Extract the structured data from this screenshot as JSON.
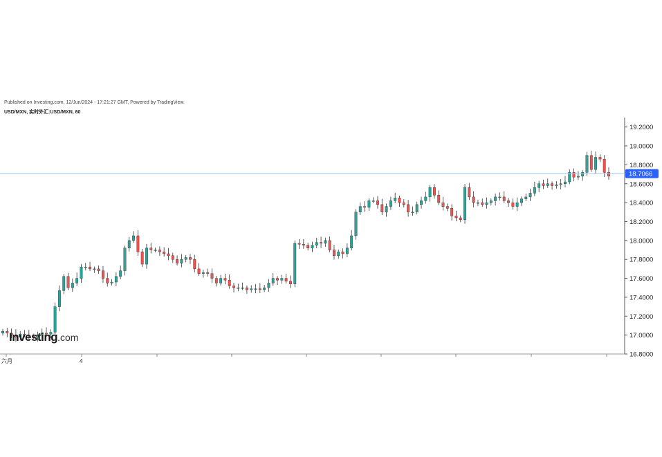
{
  "header": {
    "published": "Published on Investing.com, 12/Jun/2024 - 17:21:27 GMT, Powered by TradingView.",
    "symbol": "USD/MXN, 实时外汇:USD/MXN, 60"
  },
  "logo": {
    "brand": "Investing",
    "suffix": ".com"
  },
  "colors": {
    "up": "#26a69a",
    "down": "#ef5350",
    "last_price_line": "#9cc8e0",
    "last_price_tag": "#2962ff"
  },
  "chart_data": {
    "type": "candlestick",
    "title": "USD/MXN, 实时外汇:USD/MXN, 60",
    "ylim": [
      16.8,
      19.3
    ],
    "y_ticks": [
      "19.2000",
      "19.0000",
      "18.8000",
      "18.6000",
      "18.4000",
      "18.2000",
      "18.0000",
      "17.8000",
      "17.6000",
      "17.4000",
      "17.2000",
      "17.0000",
      "16.8000"
    ],
    "x_labels": [
      "六月",
      "4"
    ],
    "last_price": 18.7066,
    "last_price_label": "18.7066",
    "grid": false,
    "close": [
      17.04,
      17.02,
      17.0,
      16.98,
      17.01,
      17.0,
      16.99,
      16.98,
      17.0,
      17.02,
      17.01,
      17.03,
      17.3,
      17.47,
      17.62,
      17.5,
      17.55,
      17.6,
      17.72,
      17.72,
      17.7,
      17.7,
      17.68,
      17.6,
      17.55,
      17.56,
      17.62,
      17.68,
      17.92,
      18.0,
      18.05,
      17.88,
      17.75,
      17.92,
      17.9,
      17.9,
      17.88,
      17.86,
      17.84,
      17.8,
      17.76,
      17.8,
      17.82,
      17.8,
      17.7,
      17.65,
      17.66,
      17.65,
      17.6,
      17.55,
      17.6,
      17.58,
      17.52,
      17.5,
      17.5,
      17.5,
      17.48,
      17.49,
      17.49,
      17.48,
      17.5,
      17.55,
      17.6,
      17.58,
      17.6,
      17.57,
      17.54,
      17.97,
      17.96,
      17.95,
      17.92,
      17.95,
      17.98,
      17.97,
      18.0,
      17.9,
      17.84,
      17.88,
      17.86,
      17.92,
      18.05,
      18.3,
      18.36,
      18.35,
      18.42,
      18.42,
      18.38,
      18.3,
      18.36,
      18.42,
      18.45,
      18.4,
      18.38,
      18.3,
      18.3,
      18.38,
      18.42,
      18.46,
      18.56,
      18.48,
      18.4,
      18.36,
      18.34,
      18.26,
      18.24,
      18.22,
      18.56,
      18.46,
      18.4,
      18.4,
      18.38,
      18.4,
      18.42,
      18.46,
      18.46,
      18.42,
      18.4,
      18.36,
      18.4,
      18.44,
      18.46,
      18.5,
      18.56,
      18.6,
      18.58,
      18.6,
      18.58,
      18.59,
      18.6,
      18.62,
      18.72,
      18.67,
      18.68,
      18.72,
      18.9,
      18.75,
      18.88,
      18.86,
      18.72,
      18.68
    ]
  }
}
